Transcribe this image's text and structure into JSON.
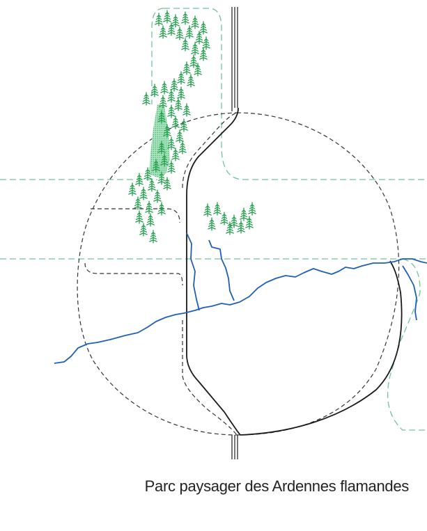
{
  "caption": "Parc paysager des Ardennes flamandes",
  "colors": {
    "boundary_solid": "#1a1a1a",
    "boundary_dashed": "#333333",
    "green_dashed": "#6fc59a",
    "river": "#1f5fb5",
    "forest": "#1f9e4a",
    "forest_fill": "#8fd6a5"
  },
  "icons": {
    "tree": "tree-icon"
  }
}
